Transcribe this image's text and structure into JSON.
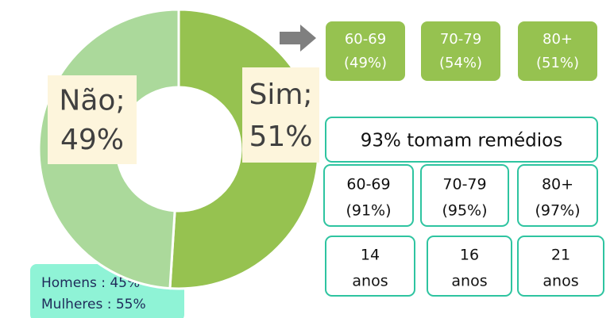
{
  "chart_data": {
    "type": "donut",
    "categories": [
      "Sim;",
      "Não;"
    ],
    "values": [
      51,
      49
    ],
    "value_labels": [
      "51%",
      "49%"
    ],
    "colors": [
      "#96c250",
      "#abd99b"
    ]
  },
  "age_groups": [
    {
      "label": "60-69",
      "share": "(49%)"
    },
    {
      "label": "70-79",
      "share": "(54%)"
    },
    {
      "label": "80+",
      "share": "(51%)"
    }
  ],
  "medication": {
    "title": "93% tomam remédios",
    "groups": [
      {
        "label": "60-69",
        "share": "(91%)"
      },
      {
        "label": "70-79",
        "share": "(95%)"
      },
      {
        "label": "80+",
        "share": "(97%)"
      }
    ],
    "years": [
      [
        "14",
        "anos"
      ],
      [
        "16",
        "anos"
      ],
      [
        "21",
        "anos"
      ]
    ]
  },
  "gender": [
    "Homens : 45%",
    "Mulheres : 55%"
  ]
}
